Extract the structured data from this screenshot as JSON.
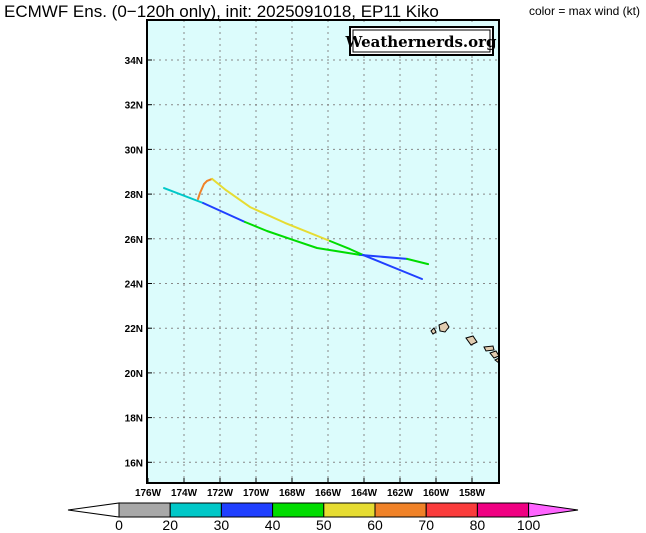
{
  "header": {
    "title": "ECMWF Ens. (0−120h only), init: 2025091018, EP11 Kiko",
    "subtitle": "color = max wind (kt)",
    "watermark": "Weathernerds.org"
  },
  "chart_data": {
    "type": "map-track",
    "lon_range_west": [
      176,
      156.4
    ],
    "lat_range_north": [
      15.1,
      35.8
    ],
    "lon_ticks": [
      "176W",
      "174W",
      "172W",
      "170W",
      "168W",
      "166W",
      "164W",
      "162W",
      "160W",
      "158W"
    ],
    "lon_tick_values": [
      176,
      174,
      172,
      170,
      168,
      166,
      164,
      162,
      160,
      158
    ],
    "lat_ticks": [
      "34N",
      "32N",
      "30N",
      "28N",
      "26N",
      "24N",
      "22N",
      "20N",
      "18N",
      "16N"
    ],
    "lat_tick_values": [
      34,
      32,
      30,
      28,
      26,
      24,
      22,
      20,
      18,
      16
    ],
    "grid": true,
    "colors": {
      "ocean": "#dcfcfc",
      "land": "#e0ccb0"
    },
    "colorbar": {
      "labels": [
        "0",
        "20",
        "30",
        "40",
        "50",
        "60",
        "70",
        "80",
        "100"
      ],
      "bins": [
        {
          "range": "<0",
          "color": "#ffffff"
        },
        {
          "range": "0-20",
          "color": "#a8a8a8"
        },
        {
          "range": "20-30",
          "color": "#00c8c8"
        },
        {
          "range": "30-40",
          "color": "#2040ff"
        },
        {
          "range": "40-50",
          "color": "#00dc00"
        },
        {
          "range": "50-60",
          "color": "#e6dc32"
        },
        {
          "range": "60-70",
          "color": "#f08228"
        },
        {
          "range": "70-80",
          "color": "#fa3c3c"
        },
        {
          "range": "80-100",
          "color": "#f00082"
        },
        {
          "range": ">100",
          "color": "#ff64ff"
        }
      ]
    },
    "tracks": [
      {
        "name": "member-a",
        "segments": [
          {
            "color": "#00c8c8",
            "points": [
              [
                175.11,
                28.27
              ],
              [
                172.94,
                27.6
              ]
            ]
          },
          {
            "color": "#2040ff",
            "points": [
              [
                172.94,
                27.6
              ],
              [
                170.61,
                26.75
              ]
            ]
          },
          {
            "color": "#00dc00",
            "points": [
              [
                170.61,
                26.75
              ],
              [
                169.39,
                26.35
              ],
              [
                167.94,
                25.95
              ],
              [
                166.61,
                25.59
              ],
              [
                164.22,
                25.28
              ]
            ]
          },
          {
            "color": "#2040ff",
            "points": [
              [
                164.22,
                25.28
              ],
              [
                161.61,
                25.1
              ]
            ]
          },
          {
            "color": "#00dc00",
            "points": [
              [
                161.61,
                25.1
              ],
              [
                160.44,
                24.87
              ]
            ]
          }
        ]
      },
      {
        "name": "member-b",
        "segments": [
          {
            "color": "#f08228",
            "points": [
              [
                173.22,
                27.78
              ],
              [
                173.11,
                28.05
              ],
              [
                172.89,
                28.45
              ],
              [
                172.72,
                28.59
              ],
              [
                172.44,
                28.68
              ]
            ]
          },
          {
            "color": "#e6dc32",
            "points": [
              [
                172.44,
                28.68
              ],
              [
                171.67,
                28.18
              ],
              [
                170.33,
                27.42
              ],
              [
                168.39,
                26.71
              ],
              [
                165.89,
                25.9
              ]
            ]
          },
          {
            "color": "#00dc00",
            "points": [
              [
                165.89,
                25.9
              ],
              [
                164.78,
                25.54
              ],
              [
                164.06,
                25.28
              ]
            ]
          },
          {
            "color": "#2040ff",
            "points": [
              [
                164.06,
                25.28
              ],
              [
                160.78,
                24.2
              ]
            ]
          }
        ]
      }
    ]
  }
}
